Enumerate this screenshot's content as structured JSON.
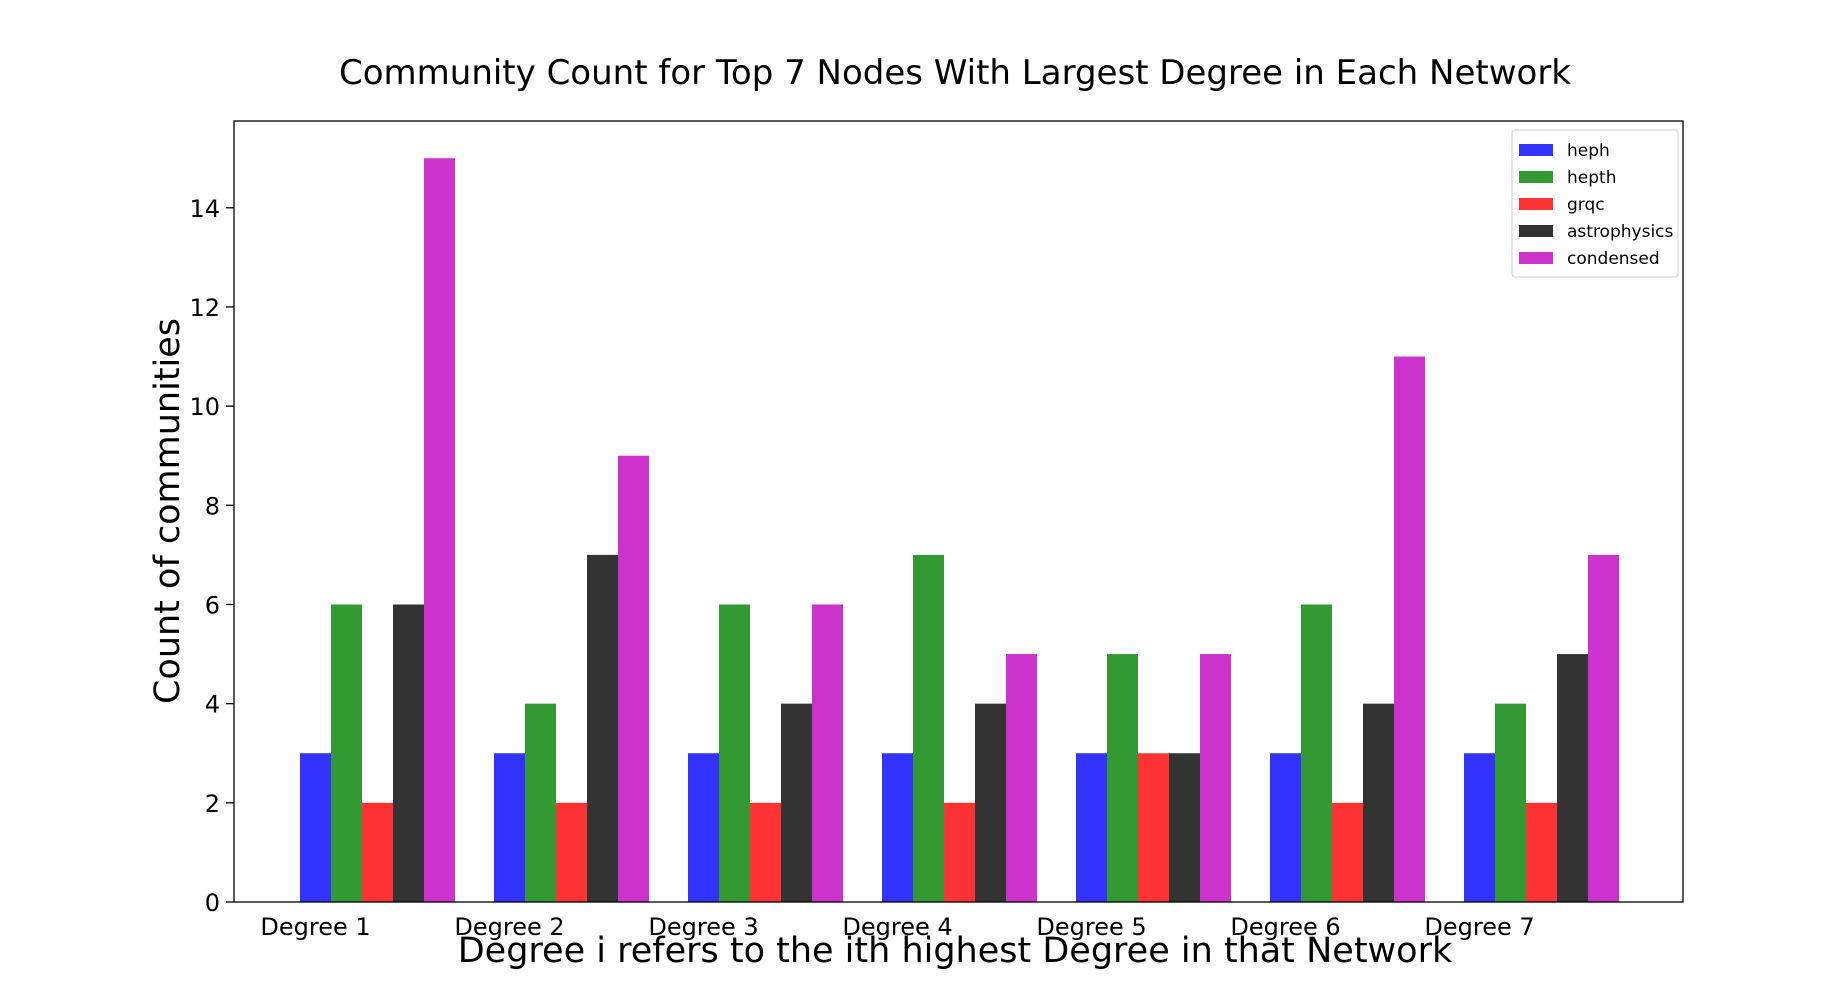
{
  "chart_data": {
    "type": "bar",
    "title": "Community Count for Top 7 Nodes With Largest Degree in Each Network",
    "xlabel": "Degree i refers to the ith highest Degree in that Network",
    "ylabel": "Count of communities",
    "categories": [
      "Degree 1",
      "Degree 2",
      "Degree 3",
      "Degree 4",
      "Degree 5",
      "Degree 6",
      "Degree 7"
    ],
    "series": [
      {
        "name": "heph",
        "color": "#3333ff",
        "values": [
          3,
          3,
          3,
          3,
          3,
          3,
          3
        ]
      },
      {
        "name": "hepth",
        "color": "#339933",
        "values": [
          6,
          4,
          6,
          7,
          5,
          6,
          4
        ]
      },
      {
        "name": "grqc",
        "color": "#ff3333",
        "values": [
          2,
          2,
          2,
          2,
          3,
          2,
          2
        ]
      },
      {
        "name": "astrophysics",
        "color": "#333333",
        "values": [
          6,
          7,
          4,
          4,
          3,
          4,
          5
        ]
      },
      {
        "name": "condensed",
        "color": "#cc33cc",
        "values": [
          15,
          9,
          6,
          5,
          5,
          11,
          7
        ]
      }
    ],
    "ylim": [
      0,
      15.75
    ],
    "yticks": [
      0,
      2,
      4,
      6,
      8,
      10,
      12,
      14
    ],
    "grid": false,
    "legend_position": "top-right"
  }
}
